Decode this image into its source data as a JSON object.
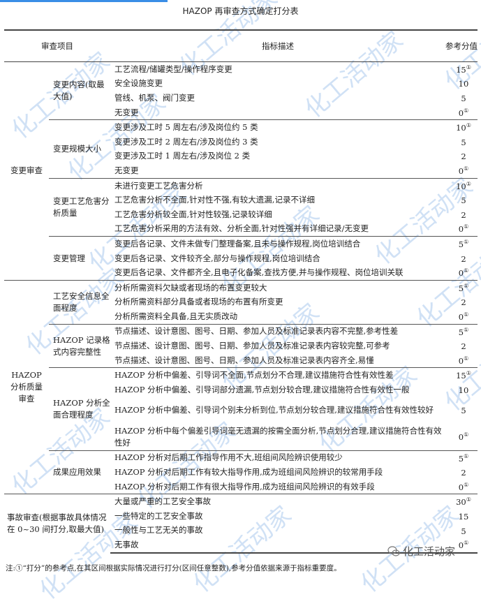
{
  "title": "HAZOP 再审查方式确定打分表",
  "header": {
    "item": "审查项目",
    "desc": "指标描述",
    "score": "参考分值"
  },
  "sections": [
    {
      "name": "变更审查",
      "groups": [
        {
          "name": "变更内容(取最大值)",
          "rows": [
            {
              "desc": "工艺流程/储罐类型/操作程序变更",
              "score": "15",
              "mark": "①"
            },
            {
              "desc": "安全设施变更",
              "score": "10",
              "mark": ""
            },
            {
              "desc": "管线、机泵、阀门变更",
              "score": "5",
              "mark": ""
            },
            {
              "desc": "无变更",
              "score": "0",
              "mark": "①"
            }
          ]
        },
        {
          "name": "变更规模大小",
          "rows": [
            {
              "desc": "变更涉及工时 5 周左右/涉及岗位约 5 类",
              "score": "10",
              "mark": "①"
            },
            {
              "desc": "变更涉及工时 2 周左右/涉及岗位约 3 类",
              "score": "5",
              "mark": ""
            },
            {
              "desc": "变更涉及工时 1 周左右/涉及岗位 2 类",
              "score": "2",
              "mark": ""
            },
            {
              "desc": "无变更",
              "score": "0",
              "mark": "①"
            }
          ]
        },
        {
          "name": "变更工艺危害分析质量",
          "rows": [
            {
              "desc": "未进行变更工艺危害分析",
              "score": "10",
              "mark": "①"
            },
            {
              "desc": "工艺危害分析不全面,针对性不强,有较大遗漏,记录不详细",
              "score": "5",
              "mark": ""
            },
            {
              "desc": "工艺危害分析较全面,针对性较强,记录较详细",
              "score": "2",
              "mark": ""
            },
            {
              "desc": "工艺危害分析采用的方法有效、分析全面,针对性强并有详细记录/无变更",
              "score": "0",
              "mark": "①"
            }
          ]
        },
        {
          "name": "变更管理",
          "rows": [
            {
              "desc": "变更后各记录、文件未做专门整理备案,且未与操作规程,岗位培训结合",
              "score": "5",
              "mark": "①"
            },
            {
              "desc": "变更后各记录、文件较齐全,部分与操作规程,岗位培训结合",
              "score": "2",
              "mark": ""
            },
            {
              "desc": "变更后各记录、文件都齐全,且电子化备案,查找方便,并与操作规程、岗位培训关联",
              "score": "0",
              "mark": "①"
            }
          ]
        }
      ]
    },
    {
      "name": "HAZOP 分析质量审查",
      "groups": [
        {
          "name": "工艺安全信息全面程度",
          "rows": [
            {
              "desc": "分析所需资料欠缺或者现场的布置变更较大",
              "score": "5",
              "mark": "①"
            },
            {
              "desc": "分析所需资料部分具备或者现场的布置有所变更",
              "score": "2",
              "mark": ""
            },
            {
              "desc": "分析所需资料全具备,且无实质改动",
              "score": "0",
              "mark": "①"
            }
          ]
        },
        {
          "name": "HAZOP 记录格式内容完整性",
          "rows": [
            {
              "desc": "节点描述、设计意图、图号、日期、参加人员及标准记录表内容不完整,参考性差",
              "score": "5",
              "mark": "①"
            },
            {
              "desc": "节点描述、设计意图、图号、日期、参加人员及标准记录表内容较完整,可参考",
              "score": "2",
              "mark": ""
            },
            {
              "desc": "节点描述、设计意图、图号、日期、参加人员及标准记录表内容齐全,易懂",
              "score": "0",
              "mark": "①"
            }
          ]
        },
        {
          "name": "HAZOP 分析全面合理程度",
          "rows": [
            {
              "desc": "HAZOP 分析中偏差、引导词不全面,节点划分不合理,建议措施符合性有效性差",
              "score": "15",
              "mark": "①"
            },
            {
              "desc": "HAZOP 分析中偏差、引导词部分遗漏,节点划分较合理,建议措施符合性有效性一般",
              "score": "10",
              "mark": ""
            },
            {
              "desc": "HAZOP 分析中偏差、引导词个别未分析到位,节点划分较合理,建议措施符合性有效性较好",
              "score": "5",
              "mark": ""
            },
            {
              "desc": "HAZOP 分析中每个偏差引导词毫无遗漏的按需全面分析,节点划分合理,建议措施符合性有效性好",
              "score": "0",
              "mark": "①"
            }
          ]
        },
        {
          "name": "成果应用效果",
          "rows": [
            {
              "desc": "HAZOP 分析对后期工作指导作用不大,班组间风险辨识使用较少",
              "score": "5",
              "mark": "①"
            },
            {
              "desc": "HAZOP 分析对后期工作有较大指导作用,成为班组间风险辨识的较常用手段",
              "score": "2",
              "mark": ""
            },
            {
              "desc": "HAZOP 分析对后期工作有很大指导作用,成为班组间风险辨识的有效手段",
              "score": "0",
              "mark": "①"
            }
          ]
        }
      ]
    },
    {
      "name": "事故审查(根据事故具体情况在 0~30 间打分,取最大值)",
      "groups": [
        {
          "name": "",
          "rows": [
            {
              "desc": "大量或严重的工艺安全事故",
              "score": "30",
              "mark": "①"
            },
            {
              "desc": "一些特定的工艺安全事故",
              "score": "15",
              "mark": ""
            },
            {
              "desc": "一般性与工艺无关的事故",
              "score": "5",
              "mark": ""
            },
            {
              "desc": "无事故",
              "score": "0",
              "mark": "①"
            }
          ]
        }
      ]
    }
  ],
  "note": "注:①“打分”的参考点,在其区间根据实际情况进行打分(区间任意整数),参考分值依据来源于指标重要度。",
  "watermark": "化工活动家",
  "logo": "化工活动家",
  "accent": "#3a8ee6"
}
